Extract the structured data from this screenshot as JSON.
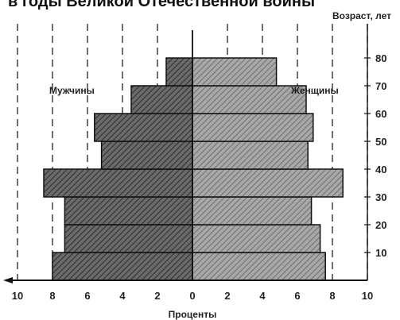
{
  "caption_fragment": "в годы Великой Отечественной войны",
  "chart_data": {
    "type": "bar",
    "orientation": "horizontal",
    "layout": "population-pyramid",
    "y_title": "Возраст, лет",
    "x_title": "Проценты",
    "left_label": "Мужчины",
    "right_label": "Женщины",
    "age_ticks": [
      "10",
      "20",
      "30",
      "40",
      "50",
      "60",
      "70",
      "80"
    ],
    "x_ticks_left": [
      "10",
      "8",
      "6",
      "4",
      "2",
      "0"
    ],
    "x_ticks_right": [
      "2",
      "4",
      "6",
      "8",
      "10"
    ],
    "age_groups": [
      {
        "from": 0,
        "to": 10
      },
      {
        "from": 10,
        "to": 20
      },
      {
        "from": 20,
        "to": 30
      },
      {
        "from": 30,
        "to": 40
      },
      {
        "from": 40,
        "to": 50
      },
      {
        "from": 50,
        "to": 60
      },
      {
        "from": 60,
        "to": 70
      },
      {
        "from": 70,
        "to": 80
      },
      {
        "from": 80,
        "to": 90
      }
    ],
    "series": [
      {
        "name": "Мужчины",
        "side": "left",
        "values": [
          8.0,
          7.3,
          7.3,
          8.5,
          5.2,
          5.6,
          3.5,
          1.5,
          0
        ]
      },
      {
        "name": "Женщины",
        "side": "right",
        "values": [
          7.6,
          7.3,
          6.8,
          8.6,
          6.6,
          6.9,
          6.5,
          4.8,
          0
        ]
      }
    ],
    "xlim": [
      -10,
      10
    ],
    "ylim": [
      0,
      90
    ],
    "grid": "vertical-dashed",
    "colors": {
      "male_fill": "#5e5e5e",
      "female_fill": "#9c9c9c",
      "grid": "#333333",
      "axis": "#111111"
    }
  }
}
